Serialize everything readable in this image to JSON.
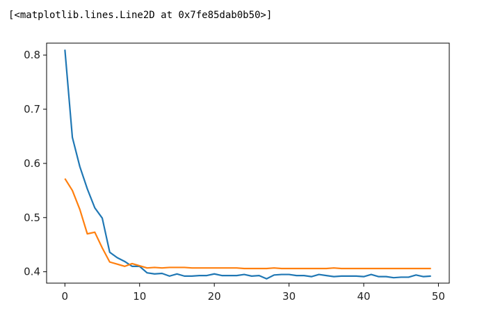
{
  "output": {
    "repr": "[<matplotlib.lines.Line2D at 0x7fe85dab0b50>]"
  },
  "chart_data": {
    "type": "line",
    "title": "",
    "xlabel": "",
    "ylabel": "",
    "xlim": [
      -2.45,
      51.45
    ],
    "ylim": [
      0.379,
      0.822
    ],
    "xticks": [
      0,
      10,
      20,
      30,
      40,
      50
    ],
    "yticks": [
      0.4,
      0.5,
      0.6,
      0.7,
      0.8
    ],
    "xtick_labels": [
      "0",
      "10",
      "20",
      "30",
      "40",
      "50"
    ],
    "ytick_labels": [
      "0.4",
      "0.5",
      "0.6",
      "0.7",
      "0.8"
    ],
    "grid": false,
    "legend": false,
    "x": [
      0,
      1,
      2,
      3,
      4,
      5,
      6,
      7,
      8,
      9,
      10,
      11,
      12,
      13,
      14,
      15,
      16,
      17,
      18,
      19,
      20,
      21,
      22,
      23,
      24,
      25,
      26,
      27,
      28,
      29,
      30,
      31,
      32,
      33,
      34,
      35,
      36,
      37,
      38,
      39,
      40,
      41,
      42,
      43,
      44,
      45,
      46,
      47,
      48,
      49
    ],
    "series": [
      {
        "color": "#1f77b4",
        "values": [
          0.81,
          0.648,
          0.594,
          0.553,
          0.518,
          0.499,
          0.436,
          0.426,
          0.419,
          0.41,
          0.41,
          0.398,
          0.396,
          0.397,
          0.392,
          0.396,
          0.392,
          0.392,
          0.393,
          0.393,
          0.396,
          0.393,
          0.393,
          0.393,
          0.395,
          0.392,
          0.393,
          0.387,
          0.394,
          0.395,
          0.395,
          0.393,
          0.393,
          0.391,
          0.395,
          0.393,
          0.391,
          0.392,
          0.392,
          0.392,
          0.391,
          0.395,
          0.391,
          0.391,
          0.389,
          0.39,
          0.39,
          0.394,
          0.391,
          0.392
        ]
      },
      {
        "color": "#ff7f0e",
        "values": [
          0.572,
          0.55,
          0.515,
          0.47,
          0.473,
          0.444,
          0.418,
          0.414,
          0.41,
          0.415,
          0.411,
          0.407,
          0.408,
          0.407,
          0.408,
          0.408,
          0.408,
          0.407,
          0.407,
          0.407,
          0.407,
          0.407,
          0.407,
          0.407,
          0.406,
          0.406,
          0.406,
          0.406,
          0.407,
          0.406,
          0.406,
          0.406,
          0.406,
          0.406,
          0.406,
          0.406,
          0.407,
          0.406,
          0.406,
          0.406,
          0.406,
          0.406,
          0.406,
          0.406,
          0.406,
          0.406,
          0.406,
          0.406,
          0.406,
          0.406
        ]
      }
    ]
  }
}
